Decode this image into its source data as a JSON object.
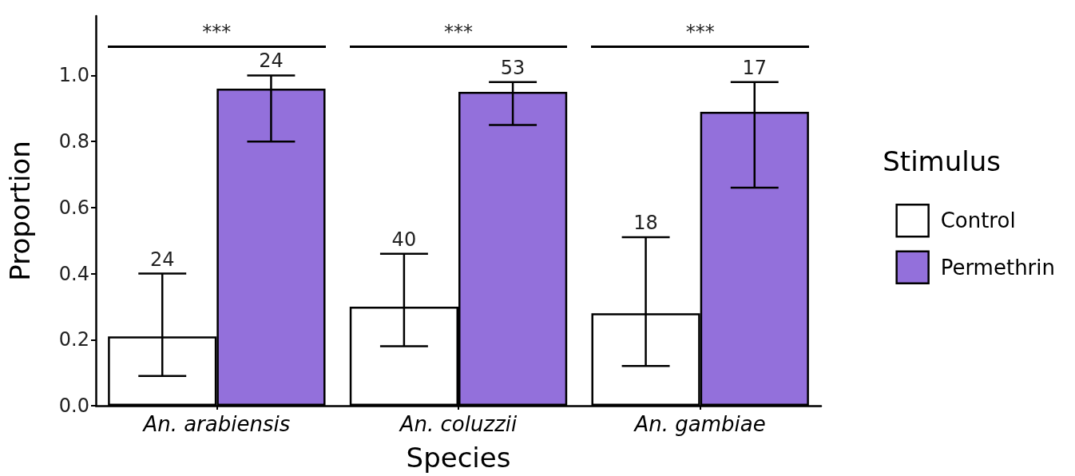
{
  "chart_data": {
    "type": "bar",
    "xlabel": "Species",
    "ylabel": "Proportion",
    "legend_title": "Stimulus",
    "categories": [
      "An. arabiensis",
      "An. coluzzii",
      "An. gambiae"
    ],
    "series": [
      {
        "name": "Control",
        "color": "#ffffff",
        "values": [
          0.21,
          0.3,
          0.28
        ],
        "errors": [
          [
            0.09,
            0.4
          ],
          [
            0.18,
            0.46
          ],
          [
            0.12,
            0.51
          ]
        ]
      },
      {
        "name": "Permethrin",
        "color": "#9370db",
        "values": [
          0.96,
          0.95,
          0.89
        ],
        "errors": [
          [
            0.8,
            1.0
          ],
          [
            0.85,
            0.98
          ],
          [
            0.66,
            0.98
          ]
        ]
      }
    ],
    "ylim": [
      0,
      1.18
    ],
    "yticks": [
      {
        "value": 0,
        "label": "0.0"
      },
      0.2,
      0.4,
      0.6,
      0.8,
      {
        "value": 1,
        "label": "1.0"
      }
    ],
    "annotations": [
      "***",
      "***",
      "***",
      "24",
      "40",
      "18",
      "24",
      "53",
      "17"
    ],
    "grid": false,
    "legend": "right"
  }
}
